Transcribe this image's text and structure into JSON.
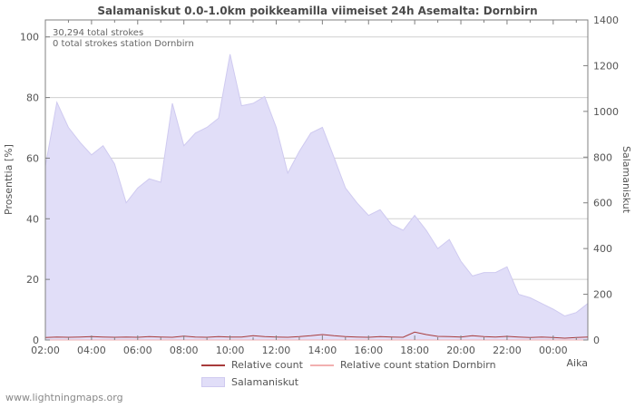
{
  "watermark": "www.lightningmaps.org",
  "colors": {
    "area": "#e1def8",
    "area_border": "#cfcaf0",
    "relative_count": "#a83b3b",
    "relative_count_station": "#f2b0b0",
    "grid": "#d0d0d0",
    "axis": "#808080",
    "text": "#555555"
  },
  "chart_data": {
    "type": "area",
    "title": "Salamaniskut 0.0-1.0km poikkeamilla viimeiset 24h Asemalta: Dornbirn",
    "annotations": [
      "30,294 total strokes",
      "0 total strokes station Dornbirn"
    ],
    "xlabel": "Aika",
    "ylabel_left": "Prosenttia  [%]",
    "ylabel_right": "Salamaniskut",
    "xlim": [
      0,
      23.5
    ],
    "ylim_left": [
      0,
      105.6
    ],
    "ylim_right": [
      0,
      1400
    ],
    "left_ticks": [
      0,
      20,
      40,
      60,
      80,
      100
    ],
    "right_ticks": [
      0,
      200,
      400,
      600,
      800,
      1000,
      1200,
      1400
    ],
    "x_tick_hours": [
      0,
      2,
      4,
      6,
      8,
      10,
      12,
      14,
      16,
      18,
      20,
      22
    ],
    "x_tick_labels": [
      "02:00",
      "04:00",
      "06:00",
      "08:00",
      "10:00",
      "12:00",
      "14:00",
      "16:00",
      "18:00",
      "20:00",
      "22:00",
      "00:00"
    ],
    "x_hours": [
      0,
      0.5,
      1,
      1.5,
      2,
      2.5,
      3,
      3.5,
      4,
      4.5,
      5,
      5.5,
      6,
      6.5,
      7,
      7.5,
      8,
      8.5,
      9,
      9.5,
      10,
      10.5,
      11,
      11.5,
      12,
      12.5,
      13,
      13.5,
      14,
      14.5,
      15,
      15.5,
      16,
      16.5,
      17,
      17.5,
      18,
      18.5,
      19,
      19.5,
      20,
      20.5,
      21,
      21.5,
      22,
      22.5,
      23,
      23.5
    ],
    "series": [
      {
        "name": "Salamaniskut",
        "axis": "right",
        "style": "area",
        "values": [
          760,
          1040,
          930,
          865,
          810,
          850,
          770,
          600,
          665,
          705,
          690,
          1035,
          850,
          905,
          930,
          970,
          1250,
          1025,
          1035,
          1065,
          930,
          730,
          825,
          905,
          930,
          800,
          665,
          600,
          545,
          570,
          505,
          480,
          545,
          480,
          400,
          440,
          345,
          280,
          295,
          295,
          320,
          200,
          185,
          160,
          135,
          105,
          120,
          160
        ]
      },
      {
        "name": "Relative count",
        "axis": "left",
        "style": "line",
        "values": [
          0.8,
          1,
          0.9,
          1,
          1.1,
          1,
          0.9,
          1,
          0.9,
          1.1,
          1,
          0.9,
          1.3,
          1,
          0.9,
          1.1,
          1,
          1,
          1.4,
          1.1,
          1,
          0.9,
          1.1,
          1.4,
          1.8,
          1.4,
          1.1,
          1,
          0.9,
          1.1,
          1,
          0.9,
          2.6,
          1.8,
          1.2,
          1.1,
          1,
          1.4,
          1.1,
          1,
          1.2,
          1,
          0.8,
          1,
          0.8,
          0.6,
          0.8,
          1
        ]
      },
      {
        "name": "Relative count station Dornbirn",
        "axis": "left",
        "style": "line",
        "values": [
          0,
          0,
          0,
          0,
          0,
          0,
          0,
          0,
          0,
          0,
          0,
          0,
          0,
          0,
          0,
          0,
          0,
          0,
          0,
          0,
          0,
          0,
          0,
          0,
          0,
          0,
          0,
          0,
          0,
          0,
          0,
          0,
          0,
          0,
          0,
          0,
          0,
          0,
          0,
          0,
          0,
          0,
          0,
          0,
          0,
          0,
          0,
          0
        ]
      }
    ],
    "legend": [
      "Relative count",
      "Relative count station Dornbirn",
      "Salamaniskut"
    ],
    "legend_position": "bottom",
    "grid": true
  }
}
